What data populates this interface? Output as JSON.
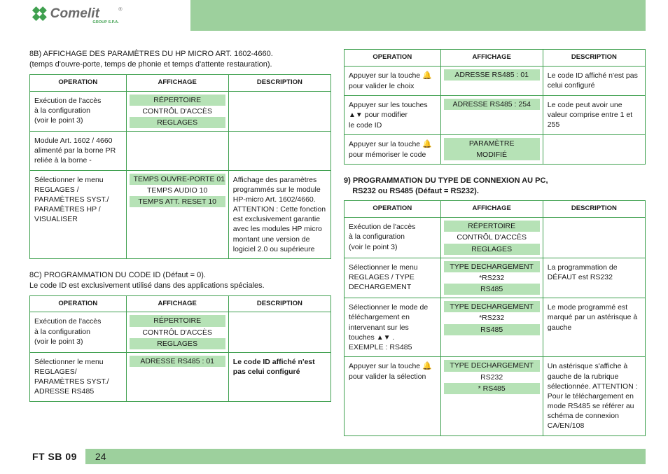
{
  "brand": {
    "name": "Comelit",
    "sub": "GROUP S.P.A.",
    "reg": "®"
  },
  "footer": {
    "label": "FT SB 09",
    "page": "24"
  },
  "icons": {
    "bell": "🔔",
    "up": "▲",
    "down": "▼"
  },
  "colors": {
    "accent_bg": "#9dd09d",
    "highlight_bg": "#b6e2b6",
    "border": "#3fa04f",
    "text": "#1a1a1a"
  },
  "headers": {
    "op": "OPERATION",
    "aff": "AFFICHAGE",
    "desc": "DESCRIPTION"
  },
  "sec8b": {
    "title_l1": "8B) AFFICHAGE DES PARAMÈTRES DU HP MICRO ART. 1602-4660.",
    "title_l2": "(temps d'ouvre-porte, temps de phonie et temps d'attente restauration).",
    "rows": [
      {
        "op": "Exécution de l'accès\nà la configuration\n(voir le point 3)",
        "aff": [
          {
            "t": "RÉPERTOIRE",
            "hl": true
          },
          {
            "t": "CONTRÔL D'ACCÈS",
            "hl": false
          },
          {
            "t": "REGLAGES",
            "hl": true
          }
        ],
        "desc": ""
      },
      {
        "op": "Module Art. 1602 / 4660\nalimenté par la borne PR\nreliée à la borne -",
        "aff": [],
        "desc": ""
      },
      {
        "op": "Sélectionner le menu\nREGLAGES /\nPARAMÈTRES SYST./\nPARAMÈTRES HP /\nVISUALISER",
        "aff": [
          {
            "t": "TEMPS OUVRE-PORTE 01",
            "hl": true
          },
          {
            "t": "TEMPS AUDIO          10",
            "hl": false
          },
          {
            "t": "TEMPS ATT. RESET   10",
            "hl": true
          }
        ],
        "desc": "Affichage des paramètres programmés sur le module HP-micro Art. 1602/4660. ATTENTION : Cette fonction est exclusivement garantie avec les modules HP micro montant une version de logiciel 2.0 ou supérieure"
      }
    ]
  },
  "sec8c": {
    "title_l1": "8C) PROGRAMMATION DU CODE ID (Défaut = 0).",
    "title_l2": "Le code ID est exclusivement utilisé dans des applications spéciales.",
    "rows": [
      {
        "op": "Exécution de l'accès\nà la configuration\n(voir le point 3)",
        "aff": [
          {
            "t": "RÉPERTOIRE",
            "hl": true
          },
          {
            "t": "CONTRÔL D'ACCÈS",
            "hl": false
          },
          {
            "t": "REGLAGES",
            "hl": true
          }
        ],
        "desc": ""
      },
      {
        "op": "Sélectionner le menu\nREGLAGES/\nPARAMÈTRES SYST./\nADRESSE RS485",
        "aff": [
          {
            "t": "ADRESSE RS485 : 01",
            "hl": true
          }
        ],
        "desc": "Le code ID affiché n'est pas celui configuré",
        "desc_bold": true
      }
    ]
  },
  "sec8c_cont": {
    "rows": [
      {
        "op": "Appuyer sur la touche {BELL}\npour valider le choix",
        "aff": [
          {
            "t": "ADRESSE RS485 : 01",
            "hl": true
          }
        ],
        "desc": "Le code ID affiché n'est pas celui configuré"
      },
      {
        "op": "Appuyer sur les touches\n{UP}{DOWN} pour modifier\nle code ID",
        "aff": [
          {
            "t": "ADRESSE RS485 : 254",
            "hl": true
          }
        ],
        "desc": "Le code peut avoir une valeur comprise entre 1 et 255"
      },
      {
        "op": "Appuyer sur la touche {BELL}\npour mémoriser le code",
        "aff": [
          {
            "t": "PARAMÈTRE",
            "hl": true
          },
          {
            "t": "MODIFIÉ",
            "hl": true
          }
        ],
        "desc": ""
      }
    ]
  },
  "sec9": {
    "title_l1": "9) PROGRAMMATION DU TYPE DE CONNEXION AU PC,",
    "title_l2": "    RS232 ou RS485 (Défaut = RS232).",
    "rows": [
      {
        "op": "Exécution de l'accès\nà la configuration\n(voir le point 3)",
        "aff": [
          {
            "t": "RÉPERTOIRE",
            "hl": true
          },
          {
            "t": "CONTRÔL D'ACCÈS",
            "hl": false
          },
          {
            "t": "REGLAGES",
            "hl": true
          }
        ],
        "desc": ""
      },
      {
        "op": "Sélectionner le menu\nREGLAGES / TYPE\nDECHARGEMENT",
        "aff": [
          {
            "t": "TYPE DECHARGEMENT",
            "hl": true
          },
          {
            "t": "*RS232",
            "hl": false
          },
          {
            "t": "RS485",
            "hl": true
          }
        ],
        "desc": "La programmation de DÉFAUT est RS232"
      },
      {
        "op": "Sélectionner le mode de téléchargement en intervenant sur les touches {UP}{DOWN} .\nEXEMPLE : RS485",
        "aff": [
          {
            "t": "TYPE DECHARGEMENT",
            "hl": true
          },
          {
            "t": "*RS232",
            "hl": false
          },
          {
            "t": "RS485",
            "hl": true
          }
        ],
        "desc": "Le mode programmé est marqué par un astérisque à gauche"
      },
      {
        "op": "Appuyer sur la touche {BELL}\npour valider la sélection",
        "aff": [
          {
            "t": "TYPE DECHARGEMENT",
            "hl": true
          },
          {
            "t": "RS232",
            "hl": false
          },
          {
            "t": "* RS485",
            "hl": true
          }
        ],
        "desc": "Un astérisque s'affiche à gauche de la rubrique sélectionnée. ATTENTION : Pour le téléchargement en mode RS485 se référer au schéma de connexion CA/EN/108"
      }
    ]
  }
}
